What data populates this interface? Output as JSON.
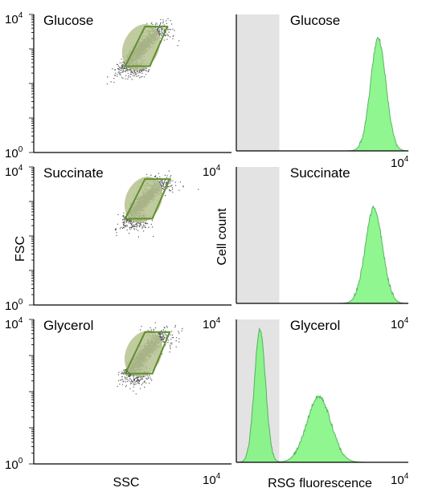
{
  "chart_data": {
    "type": "scatter-histogram-grid",
    "conditions": [
      "Glucose",
      "Succinate",
      "Glycerol"
    ],
    "scatter": {
      "xlabel": "SSC",
      "ylabel": "FSC",
      "scale": "log",
      "xlim": [
        1,
        10000
      ],
      "ylim": [
        1,
        10000
      ],
      "tick_base": "10",
      "tick_min_exp": "0",
      "tick_max_exp": "4",
      "gate": "parallelogram",
      "gate_color": "#5f8f2f",
      "point_color": "#222222",
      "density_color": "#b6c28f",
      "panels": [
        {
          "name": "Glucose",
          "center_log": [
            2.15,
            3.0
          ],
          "gate_log": [
            [
              1.85,
              2.5
            ],
            [
              2.35,
              2.5
            ],
            [
              2.7,
              3.65
            ],
            [
              2.25,
              3.65
            ]
          ]
        },
        {
          "name": "Succinate",
          "center_log": [
            2.2,
            3.0
          ],
          "gate_log": [
            [
              1.85,
              2.5
            ],
            [
              2.4,
              2.5
            ],
            [
              2.75,
              3.65
            ],
            [
              2.25,
              3.65
            ]
          ]
        },
        {
          "name": "Glycerol",
          "center_log": [
            2.2,
            3.0
          ],
          "gate_log": [
            [
              1.85,
              2.5
            ],
            [
              2.4,
              2.5
            ],
            [
              2.75,
              3.65
            ],
            [
              2.25,
              3.65
            ]
          ]
        }
      ]
    },
    "histogram": {
      "xlabel": "RSG fluorescence",
      "ylabel": "Cell count",
      "scale": "log",
      "xlim": [
        1,
        10000
      ],
      "tick_base": "10",
      "tick_max_exp": "4",
      "shaded_region_log": [
        0,
        1
      ],
      "shaded_color": "#e3e3e3",
      "fill_color": "#7df57d",
      "line_color": "#3fa84a",
      "panels": [
        {
          "name": "Glucose",
          "peaks": [
            {
              "center_log": 3.3,
              "width_log": 0.18,
              "height": 0.82
            }
          ]
        },
        {
          "name": "Succinate",
          "peaks": [
            {
              "center_log": 3.2,
              "width_log": 0.2,
              "height": 0.7
            }
          ]
        },
        {
          "name": "Glycerol",
          "peaks": [
            {
              "center_log": 0.55,
              "width_log": 0.13,
              "height": 0.93
            },
            {
              "center_log": 1.92,
              "width_log": 0.28,
              "height": 0.46
            }
          ]
        }
      ]
    }
  }
}
